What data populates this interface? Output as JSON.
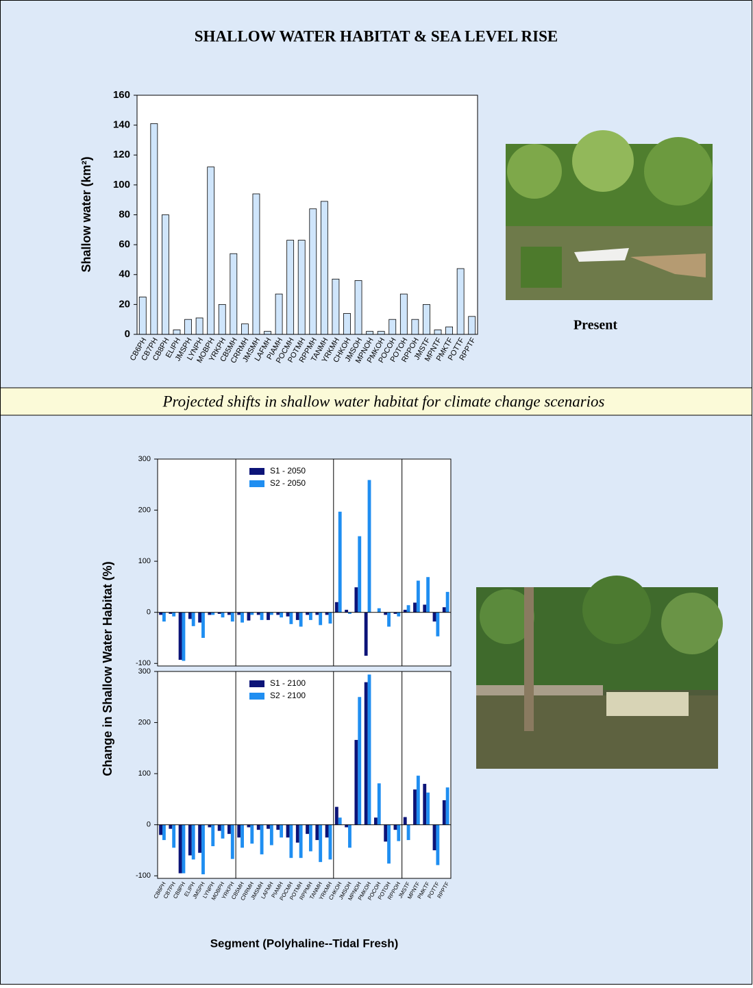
{
  "header": {
    "title": "SHALLOW WATER HABITAT & SEA LEVEL RISE",
    "photo_caption": "Present",
    "banner": "Projected shifts in shallow water habitat for climate change scenarios"
  },
  "chart_data": [
    {
      "type": "bar",
      "ylabel": "Shallow water (km²)",
      "categories": [
        "CB6PH",
        "CB7PH",
        "CB8PH",
        "ELIPH",
        "JMSPH",
        "LYNPH",
        "MOBPH",
        "YRKPH",
        "CB5MH",
        "CRRMH",
        "JMSMH",
        "LAFMH",
        "PIAMH",
        "POCMH",
        "POTMH",
        "RPPMH",
        "TANMH",
        "YRKMH",
        "CHKOH",
        "JMSOH",
        "MPNOH",
        "PMKOH",
        "POCOH",
        "POTOH",
        "RPPOH",
        "JMSTF",
        "MPNTF",
        "PMKTF",
        "POTTF",
        "RPPTF"
      ],
      "values": [
        25,
        141,
        80,
        3,
        10,
        11,
        112,
        20,
        54,
        7,
        94,
        2,
        27,
        63,
        63,
        84,
        89,
        37,
        14,
        36,
        2,
        2,
        10,
        27,
        10,
        20,
        3,
        5,
        44,
        12
      ],
      "color": "#cfe5fb",
      "ylim": [
        0,
        160
      ],
      "yticks": [
        0,
        20,
        40,
        60,
        80,
        100,
        120,
        140,
        160
      ]
    },
    {
      "type": "bar",
      "ylabel": "Change in Shallow Water Habitat (%)",
      "legend": "upper center",
      "series": [
        {
          "name": "S1 - 2050",
          "color": "#0c1478",
          "values": [
            -5,
            -3,
            -93,
            -13,
            -20,
            -5,
            -3,
            -5,
            -5,
            -16,
            -5,
            -15,
            -5,
            -8,
            -15,
            -5,
            -5,
            -5,
            20,
            5,
            49,
            -85,
            0,
            -5,
            -3,
            5,
            19,
            15,
            -18,
            10
          ]
        },
        {
          "name": "S2 - 2050",
          "color": "#1f8ef1",
          "values": [
            -18,
            -8,
            -95,
            -27,
            -50,
            -5,
            -10,
            -18,
            -20,
            -5,
            -15,
            -5,
            -10,
            -23,
            -28,
            -15,
            -25,
            -22,
            197,
            -3,
            149,
            259,
            8,
            -28,
            -8,
            14,
            62,
            69,
            -47,
            40
          ]
        }
      ],
      "ylim": [
        -105,
        300
      ],
      "yticks": [
        -100,
        0,
        100,
        200,
        300
      ]
    },
    {
      "type": "bar",
      "xlabel": "Segment (Polyhaline--Tidal Fresh)",
      "legend": "upper center",
      "categories": [
        "CB6PH",
        "CB7PH",
        "CB8PH",
        "ELIPH",
        "JMSPH",
        "LYNPH",
        "MOBPH",
        "YRKPH",
        "CB5MH",
        "CRRMH",
        "JMSMH",
        "LAFMH",
        "PIAMH",
        "POCMH",
        "POTMH",
        "RPPMH",
        "TANMH",
        "YRKMH",
        "CHKOH",
        "JMSOH",
        "MPNOH",
        "PMKOH",
        "POCOH",
        "POTOH",
        "RPPOH",
        "JMSTF",
        "MPNTF",
        "PMKTF",
        "POTTF",
        "RPPTF"
      ],
      "series": [
        {
          "name": "S1 - 2100",
          "color": "#0c1478",
          "values": [
            -20,
            -8,
            -95,
            -60,
            -55,
            -5,
            -12,
            -18,
            -25,
            -5,
            -10,
            -8,
            -10,
            -25,
            -35,
            -18,
            -30,
            -25,
            35,
            -5,
            166,
            279,
            14,
            -33,
            -10,
            15,
            69,
            80,
            -50,
            48
          ]
        },
        {
          "name": "S2 - 2100",
          "color": "#1f8ef1",
          "values": [
            -30,
            -45,
            -95,
            -68,
            -97,
            -42,
            -27,
            -67,
            -45,
            -37,
            -58,
            -40,
            -25,
            -65,
            -65,
            -52,
            -73,
            -68,
            14,
            -45,
            250,
            294,
            81,
            -76,
            -32,
            -30,
            96,
            63,
            -79,
            73
          ]
        }
      ],
      "ylim": [
        -105,
        300
      ],
      "yticks": [
        -100,
        0,
        100,
        200,
        300
      ]
    }
  ]
}
